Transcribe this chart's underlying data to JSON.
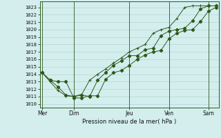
{
  "title": "Pression niveau de la mer( hPa )",
  "ylabel_vals": [
    1010,
    1011,
    1012,
    1013,
    1014,
    1015,
    1016,
    1017,
    1018,
    1019,
    1020,
    1021,
    1022,
    1023
  ],
  "ylim": [
    1009.5,
    1023.8
  ],
  "bg_color": "#d4eeee",
  "grid_color": "#b8dada",
  "line_color": "#2d5a1b",
  "series1": [
    1014.2,
    1013.2,
    1013.0,
    1013.0,
    1010.8,
    1010.8,
    1011.1,
    1011.1,
    1013.3,
    1014.2,
    1014.5,
    1015.2,
    1016.0,
    1016.6,
    1017.0,
    1017.2,
    1018.8,
    1019.5,
    1019.9,
    1020.0,
    1021.1,
    1022.5,
    1023.0
  ],
  "series2": [
    1014.2,
    1013.2,
    1012.3,
    1011.2,
    1011.0,
    1011.2,
    1011.0,
    1013.2,
    1014.2,
    1015.2,
    1015.8,
    1016.5,
    1016.5,
    1017.3,
    1017.5,
    1019.2,
    1019.8,
    1020.0,
    1020.2,
    1021.2,
    1022.8,
    1023.2,
    1023.2
  ],
  "series3": [
    1014.2,
    1013.0,
    1011.8,
    1011.1,
    1011.0,
    1011.3,
    1013.2,
    1014.0,
    1014.7,
    1015.5,
    1016.2,
    1017.0,
    1017.5,
    1018.0,
    1019.5,
    1020.0,
    1020.3,
    1021.5,
    1023.0,
    1023.2,
    1023.2,
    1023.2,
    1023.2
  ],
  "n_points": 23,
  "day_tick_positions": [
    0,
    4,
    11,
    16,
    21
  ],
  "day_tick_labels": [
    "Mer",
    "Dim",
    "Jeu",
    "Ven",
    "Sam"
  ],
  "vline_positions": [
    0,
    4,
    11,
    16,
    21
  ]
}
